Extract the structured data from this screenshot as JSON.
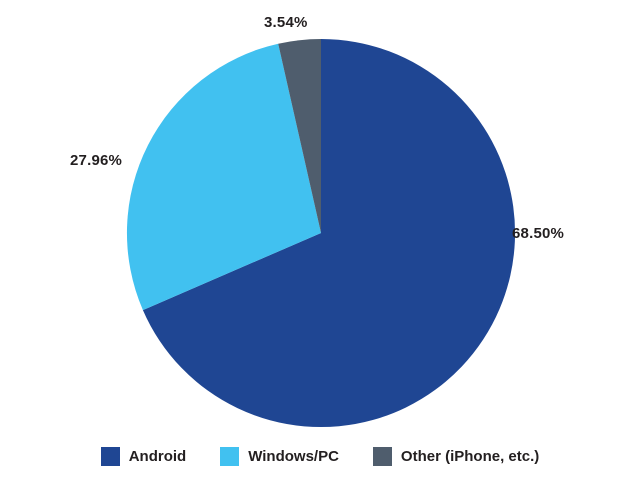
{
  "chart_data": {
    "type": "pie",
    "title": "",
    "labels": [
      "Android",
      "Windows/PC",
      "Other (iPhone, etc.)"
    ],
    "values": [
      68.5,
      27.96,
      3.54
    ],
    "display_labels": [
      "68.50%",
      "27.96%",
      "3.54%"
    ],
    "colors": [
      "#1f4693",
      "#41c1f0",
      "#4f5d6d"
    ],
    "start_angle_deg": 0,
    "direction": "clockwise",
    "slice_order_clockwise_from_top": [
      "Android",
      "Windows/PC",
      "Other (iPhone, etc.)"
    ],
    "legend_position": "bottom",
    "grid": false
  }
}
